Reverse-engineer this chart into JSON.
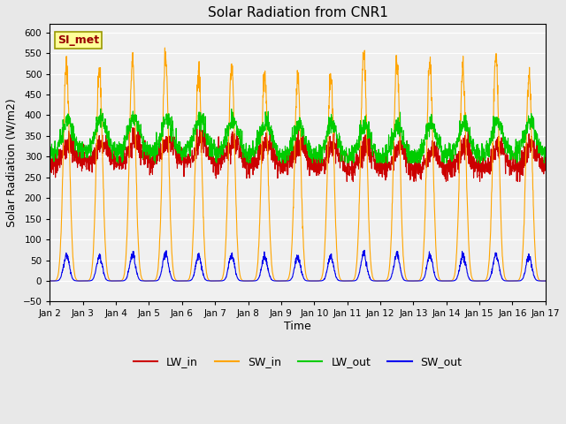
{
  "title": "Solar Radiation from CNR1",
  "xlabel": "Time",
  "ylabel": "Solar Radiation (W/m2)",
  "ylim": [
    -50,
    620
  ],
  "yticks": [
    -50,
    0,
    50,
    100,
    150,
    200,
    250,
    300,
    350,
    400,
    450,
    500,
    550,
    600
  ],
  "annotation_text": "SI_met",
  "annotation_bg": "#FFFF99",
  "annotation_border": "#999900",
  "annotation_text_color": "#990000",
  "xtick_labels": [
    "Jan 2",
    "Jan 3",
    "Jan 4",
    "Jan 5",
    "Jan 6",
    "Jan 7",
    "Jan 8",
    "Jan 9",
    "Jan 10",
    "Jan 11",
    "Jan 12",
    "Jan 13",
    "Jan 14",
    "Jan 15",
    "Jan 16",
    "Jan 17"
  ],
  "colors": {
    "LW_in": "#CC0000",
    "SW_in": "#FFA500",
    "LW_out": "#00CC00",
    "SW_out": "#0000EE"
  },
  "bg_color": "#E8E8E8",
  "plot_bg": "#F0F0F0",
  "line_width": 0.8,
  "n_days": 15,
  "pts_per_day": 144
}
